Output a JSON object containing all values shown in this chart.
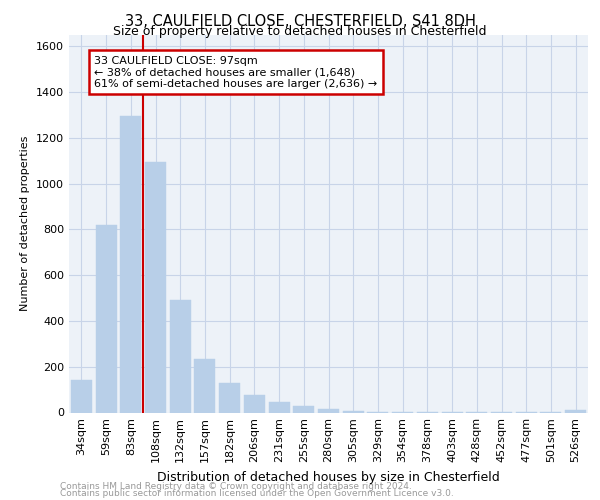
{
  "title_line1": "33, CAULFIELD CLOSE, CHESTERFIELD, S41 8DH",
  "title_line2": "Size of property relative to detached houses in Chesterfield",
  "xlabel": "Distribution of detached houses by size in Chesterfield",
  "ylabel": "Number of detached properties",
  "categories": [
    "34sqm",
    "59sqm",
    "83sqm",
    "108sqm",
    "132sqm",
    "157sqm",
    "182sqm",
    "206sqm",
    "231sqm",
    "255sqm",
    "280sqm",
    "305sqm",
    "329sqm",
    "354sqm",
    "378sqm",
    "403sqm",
    "428sqm",
    "452sqm",
    "477sqm",
    "501sqm",
    "526sqm"
  ],
  "values": [
    140,
    820,
    1295,
    1095,
    490,
    235,
    130,
    75,
    48,
    28,
    15,
    8,
    4,
    2,
    2,
    1,
    1,
    1,
    1,
    1,
    10
  ],
  "bar_color": "#b8cfe8",
  "bar_edgecolor": "#b8cfe8",
  "property_line_x": 2.5,
  "annotation_line1": "33 CAULFIELD CLOSE: 97sqm",
  "annotation_line2": "← 38% of detached houses are smaller (1,648)",
  "annotation_line3": "61% of semi-detached houses are larger (2,636) →",
  "annotation_box_color": "#cc0000",
  "ylim": [
    0,
    1650
  ],
  "yticks": [
    0,
    200,
    400,
    600,
    800,
    1000,
    1200,
    1400,
    1600
  ],
  "footer_line1": "Contains HM Land Registry data © Crown copyright and database right 2024.",
  "footer_line2": "Contains public sector information licensed under the Open Government Licence v3.0.",
  "grid_color": "#c8d4e8",
  "bg_color": "#edf2f8",
  "title1_fontsize": 10.5,
  "title2_fontsize": 9,
  "ylabel_fontsize": 8,
  "xlabel_fontsize": 9,
  "tick_fontsize": 8,
  "footer_fontsize": 6.5,
  "annotation_fontsize": 8
}
